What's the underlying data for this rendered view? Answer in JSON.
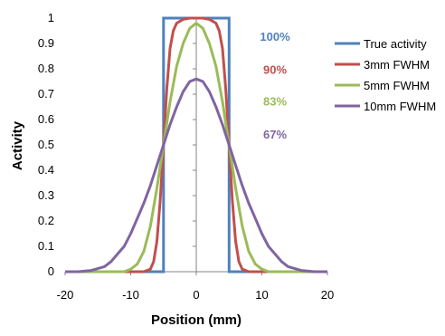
{
  "chart_data": {
    "type": "line",
    "title": "",
    "xlabel": "Position (mm)",
    "ylabel": "Activity",
    "xlim": [
      -20,
      20
    ],
    "ylim": [
      0,
      1
    ],
    "x_ticks": [
      -20,
      -10,
      0,
      10,
      20
    ],
    "x_tick_labels": [
      "-20",
      "-10",
      "0",
      "10",
      "20"
    ],
    "y_ticks": [
      0,
      0.1,
      0.2,
      0.3,
      0.4,
      0.5,
      0.6,
      0.7,
      0.8,
      0.9,
      1
    ],
    "y_tick_labels": [
      "0",
      "0.1",
      "0.2",
      "0.3",
      "0.4",
      "0.5",
      "0.6",
      "0.7",
      "0.8",
      "0.9",
      "1"
    ],
    "grid": false,
    "legend_position": "right",
    "series": [
      {
        "name": "True activity",
        "color": "#4F81BD",
        "x": [
          -20,
          -5,
          -5,
          5,
          5,
          20
        ],
        "y": [
          0,
          0,
          1,
          1,
          0,
          0
        ]
      },
      {
        "name": "3mm FWHM",
        "color": "#C0504D",
        "x": [
          -20,
          -8,
          -7,
          -6.5,
          -6,
          -5.5,
          -5,
          -4.5,
          -4,
          -3.5,
          -3,
          -2,
          -1,
          0,
          1,
          2,
          3,
          3.5,
          4,
          4.5,
          5,
          5.5,
          6,
          6.5,
          7,
          8,
          20
        ],
        "y": [
          0,
          0,
          0.01,
          0.04,
          0.12,
          0.28,
          0.5,
          0.72,
          0.88,
          0.95,
          0.98,
          0.995,
          1,
          1,
          1,
          0.995,
          0.98,
          0.95,
          0.88,
          0.72,
          0.5,
          0.28,
          0.12,
          0.04,
          0.01,
          0,
          0
        ]
      },
      {
        "name": "5mm FWHM",
        "color": "#9BBB59",
        "x": [
          -20,
          -11,
          -10,
          -9,
          -8,
          -7,
          -6,
          -5,
          -4,
          -3,
          -2,
          -1,
          0,
          1,
          2,
          3,
          4,
          5,
          6,
          7,
          8,
          9,
          10,
          11,
          20
        ],
        "y": [
          0,
          0,
          0.01,
          0.03,
          0.08,
          0.18,
          0.33,
          0.5,
          0.67,
          0.81,
          0.9,
          0.96,
          0.98,
          0.96,
          0.9,
          0.81,
          0.67,
          0.5,
          0.33,
          0.18,
          0.08,
          0.03,
          0.01,
          0,
          0
        ]
      },
      {
        "name": "10mm FWHM",
        "color": "#8064A2",
        "x": [
          -20,
          -18,
          -16,
          -14,
          -13,
          -12,
          -11,
          -10,
          -9,
          -8,
          -7,
          -6,
          -5,
          -4,
          -3,
          -2,
          -1,
          0,
          1,
          2,
          3,
          4,
          5,
          6,
          7,
          8,
          9,
          10,
          11,
          12,
          13,
          14,
          16,
          18,
          20
        ],
        "y": [
          0,
          0,
          0.005,
          0.02,
          0.04,
          0.07,
          0.1,
          0.15,
          0.21,
          0.27,
          0.34,
          0.42,
          0.5,
          0.58,
          0.65,
          0.71,
          0.75,
          0.76,
          0.75,
          0.71,
          0.65,
          0.58,
          0.5,
          0.42,
          0.34,
          0.27,
          0.21,
          0.15,
          0.1,
          0.07,
          0.04,
          0.02,
          0.005,
          0,
          0
        ]
      }
    ],
    "annotations": [
      {
        "text": "100%",
        "color": "#4F81BD",
        "x": 12,
        "y": 0.91
      },
      {
        "text": "90%",
        "color": "#C0504D",
        "x": 12,
        "y": 0.78
      },
      {
        "text": "83%",
        "color": "#9BBB59",
        "x": 12,
        "y": 0.655
      },
      {
        "text": "67%",
        "color": "#8064A2",
        "x": 12,
        "y": 0.525
      }
    ]
  }
}
